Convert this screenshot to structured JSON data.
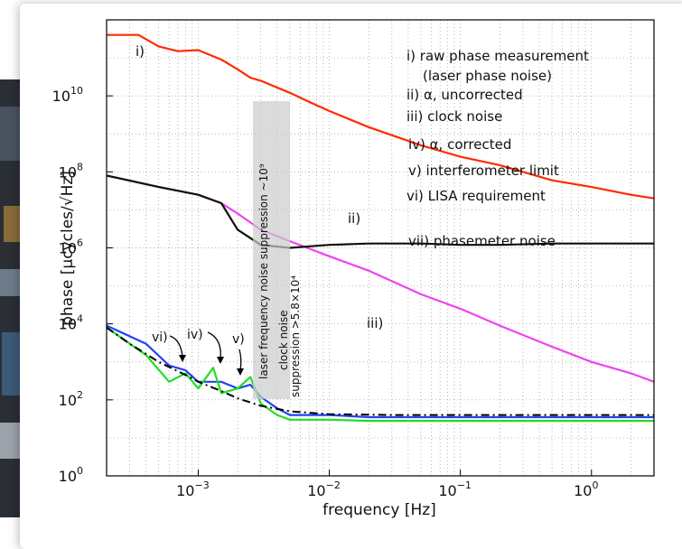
{
  "chart_data": {
    "type": "line",
    "xlabel": "frequency [Hz]",
    "ylabel": "phase [μcycles/√Hz]",
    "xscale": "log",
    "yscale": "log",
    "xlim": [
      0.0002,
      3
    ],
    "ylim": [
      1,
      1000000000000
    ],
    "grid": true,
    "x_ticks": [
      {
        "value": 0.001,
        "base": "10",
        "exp": "−3"
      },
      {
        "value": 0.01,
        "base": "10",
        "exp": "−2"
      },
      {
        "value": 0.1,
        "base": "10",
        "exp": "−1"
      },
      {
        "value": 1,
        "base": "10",
        "exp": "0"
      }
    ],
    "y_ticks": [
      {
        "value": 1,
        "base": "10",
        "exp": "0"
      },
      {
        "value": 100,
        "base": "10",
        "exp": "2"
      },
      {
        "value": 10000,
        "base": "10",
        "exp": "4"
      },
      {
        "value": 1000000,
        "base": "10",
        "exp": "6"
      },
      {
        "value": 100000000,
        "base": "10",
        "exp": "8"
      },
      {
        "value": 10000000000,
        "base": "10",
        "exp": "10"
      }
    ],
    "legend": [
      "i) raw phase measurement",
      "(laser phase noise)",
      "ii) α, uncorrected",
      "iii) clock noise",
      "iv) α, corrected",
      "v) interferometer limit",
      "vi) LISA requirement",
      "vii) phasemeter noise"
    ],
    "series": [
      {
        "label": "i)",
        "color": "#ff2a00",
        "x": [
          0.0002,
          0.00035,
          0.0005,
          0.0007,
          0.001,
          0.0015,
          0.002,
          0.0025,
          0.003,
          0.005,
          0.007,
          0.01,
          0.02,
          0.05,
          0.1,
          0.2,
          0.5,
          1,
          2,
          3
        ],
        "y": [
          400000000000,
          400000000000,
          200000000000,
          150000000000,
          160000000000,
          90000000000,
          50000000000,
          30000000000,
          25000000000,
          12000000000,
          7000000000,
          4000000000,
          1500000000,
          500000000,
          250000000,
          150000000,
          60000000,
          40000000,
          25000000,
          20000000
        ]
      },
      {
        "label": "iii)",
        "color": "#ee44ee",
        "x": [
          0.0002,
          0.0005,
          0.001,
          0.0015,
          0.002,
          0.003,
          0.005,
          0.01,
          0.02,
          0.05,
          0.1,
          0.2,
          0.5,
          1,
          2,
          3
        ],
        "y": [
          80000000,
          40000000,
          25000000,
          15000000,
          8000000,
          3000000,
          1500000,
          600000,
          250000,
          60000,
          25000,
          9000,
          2500,
          1000,
          500,
          300
        ]
      },
      {
        "label": "ii)",
        "color": "#111111",
        "x": [
          0.0002,
          0.0005,
          0.001,
          0.0015,
          0.002,
          0.003,
          0.005,
          0.01,
          0.02,
          0.05,
          0.1,
          0.2,
          0.5,
          1,
          2,
          3
        ],
        "y": [
          80000000,
          40000000,
          25000000,
          15000000,
          3000000,
          1200000,
          1000000,
          1200000,
          1300000,
          1300000,
          1200000,
          1200000,
          1300000,
          1300000,
          1300000,
          1300000
        ]
      },
      {
        "label": "iv)",
        "color": "#2244ee",
        "x": [
          0.0002,
          0.0004,
          0.0006,
          0.0008,
          0.001,
          0.0015,
          0.002,
          0.0025,
          0.003,
          0.004,
          0.005,
          0.01,
          0.02,
          0.05,
          0.1,
          0.5,
          1,
          3
        ],
        "y": [
          9000,
          3000,
          800,
          600,
          300,
          300,
          200,
          250,
          120,
          60,
          40,
          40,
          35,
          35,
          35,
          35,
          35,
          35
        ]
      },
      {
        "label": "v)",
        "color": "#22dd22",
        "x": [
          0.0002,
          0.0004,
          0.0006,
          0.0008,
          0.001,
          0.0013,
          0.0015,
          0.002,
          0.0025,
          0.003,
          0.004,
          0.005,
          0.01,
          0.02,
          0.05,
          0.1,
          0.5,
          1,
          3
        ],
        "y": [
          8000,
          1500,
          300,
          500,
          200,
          700,
          150,
          200,
          400,
          80,
          40,
          30,
          30,
          28,
          28,
          28,
          28,
          28,
          28
        ]
      },
      {
        "label": "vi)",
        "color": "#000000",
        "dash": true,
        "x": [
          0.0002,
          0.0003,
          0.0005,
          0.0008,
          0.001,
          0.0015,
          0.002,
          0.003,
          0.005,
          0.01,
          0.03,
          0.1,
          1,
          3
        ],
        "y": [
          8000,
          3000,
          1000,
          450,
          300,
          170,
          110,
          70,
          50,
          42,
          40,
          40,
          40,
          40
        ]
      }
    ],
    "annotations": [
      "laser frequency noise suppression ~10⁹",
      "clock noise",
      "suppression >5.8×10⁴"
    ]
  }
}
